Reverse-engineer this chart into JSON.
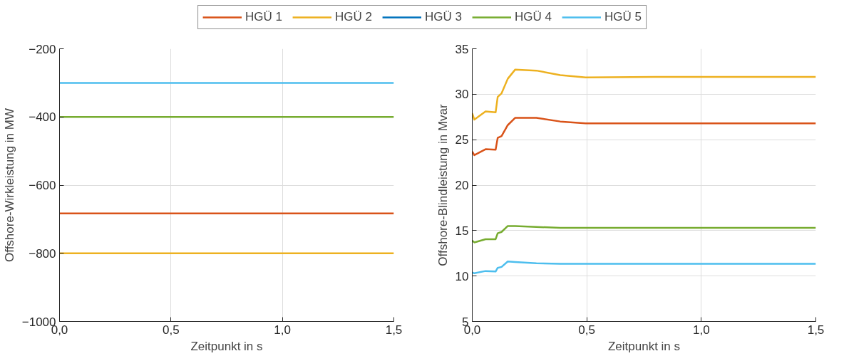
{
  "chart_data": [
    {
      "type": "line",
      "xlabel": "Zeitpunkt in s",
      "ylabel": "Offshore-Wirkleistung in MW",
      "legend": "top",
      "grid": true,
      "line_style": "solid",
      "x": [
        0,
        1.5
      ],
      "xlim": [
        0,
        1.5
      ],
      "xticks": [
        {
          "value": 0,
          "label": "0,0"
        },
        {
          "value": 0.5,
          "label": "0,5"
        },
        {
          "value": 1,
          "label": "1,0"
        },
        {
          "value": 1.5,
          "label": "1,5"
        }
      ],
      "ylim": [
        -1000,
        -200
      ],
      "yticks": [
        -1000,
        -800,
        -600,
        -400,
        -200
      ],
      "series": [
        {
          "name": "HGÜ 1",
          "color": "#d95319",
          "values": [
            -683,
            -683
          ]
        },
        {
          "name": "HGÜ 2",
          "color": "#edb120",
          "values": [
            -800,
            -800
          ]
        },
        {
          "name": "HGÜ 3",
          "color": "#0072bd",
          "values": [
            null,
            null
          ]
        },
        {
          "name": "HGÜ 4",
          "color": "#77ac30",
          "values": [
            -400,
            -400
          ]
        },
        {
          "name": "HGÜ 5",
          "color": "#4dbeee",
          "values": [
            -300,
            -300
          ]
        }
      ]
    },
    {
      "type": "line",
      "xlabel": "Zeitpunkt in s",
      "ylabel": "Offshore-Blindleistung in Mvar",
      "grid": true,
      "line_style": "solid",
      "x": [
        0,
        0.009,
        0.058,
        0.102,
        0.111,
        0.128,
        0.155,
        0.187,
        0.28,
        0.384,
        0.495,
        0.8,
        1.5
      ],
      "xlim": [
        0,
        1.5
      ],
      "xticks": [
        {
          "value": 0,
          "label": "0,0"
        },
        {
          "value": 0.5,
          "label": "0,5"
        },
        {
          "value": 1,
          "label": "1,0"
        },
        {
          "value": 1.5,
          "label": "1,5"
        }
      ],
      "ylim": [
        5,
        35
      ],
      "yticks": [
        5,
        10,
        15,
        20,
        25,
        30,
        35
      ],
      "series": [
        {
          "color": "#d95319",
          "values": [
            23.7,
            23.3,
            23.95,
            23.9,
            25.2,
            25.4,
            26.6,
            27.4,
            27.4,
            27.0,
            26.8,
            26.8,
            26.8
          ]
        },
        {
          "color": "#edb120",
          "values": [
            27.9,
            27.2,
            28.1,
            28.0,
            29.7,
            30.1,
            31.7,
            32.7,
            32.6,
            32.1,
            31.85,
            31.9,
            31.9
          ]
        },
        {
          "color": "#0072bd",
          "values": [
            null,
            null,
            null,
            null,
            null,
            null,
            null,
            null,
            null,
            null,
            null,
            null,
            null
          ]
        },
        {
          "color": "#77ac30",
          "values": [
            13.9,
            13.7,
            14.05,
            14.05,
            14.7,
            14.85,
            15.5,
            15.5,
            15.4,
            15.3,
            15.3,
            15.3,
            15.3
          ]
        },
        {
          "color": "#4dbeee",
          "values": [
            10.4,
            10.3,
            10.55,
            10.5,
            10.9,
            11.0,
            11.6,
            11.55,
            11.4,
            11.35,
            11.35,
            11.35,
            11.35
          ]
        }
      ]
    }
  ]
}
